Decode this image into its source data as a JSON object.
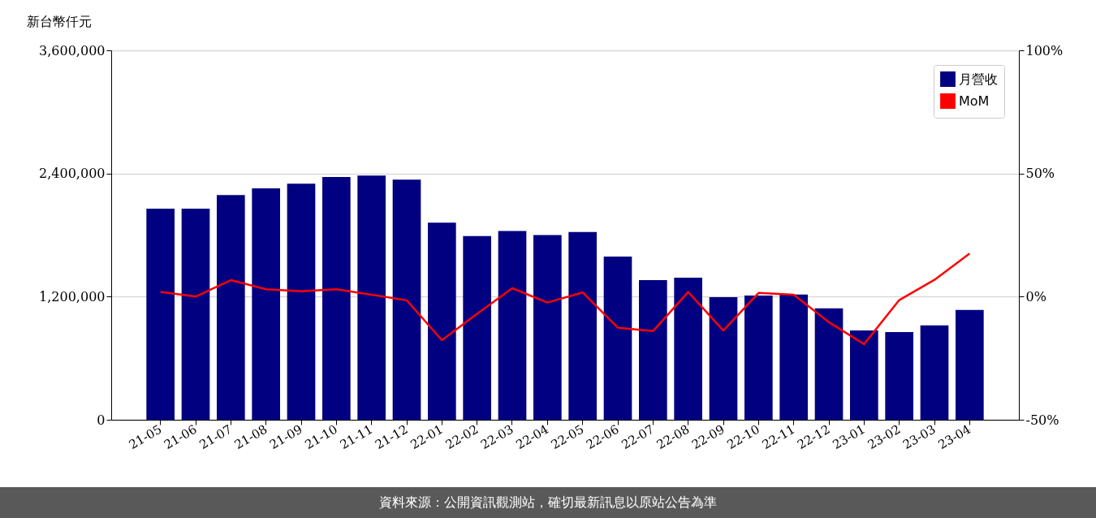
{
  "chart_data": {
    "type": "bar",
    "ylabel": "新台幣仟元",
    "categories": [
      "21-05",
      "21-06",
      "21-07",
      "21-08",
      "21-09",
      "21-10",
      "21-11",
      "21-12",
      "22-01",
      "22-02",
      "22-03",
      "22-04",
      "22-05",
      "22-06",
      "22-07",
      "22-08",
      "22-09",
      "22-10",
      "22-11",
      "22-12",
      "23-01",
      "23-02",
      "23-03",
      "23-04"
    ],
    "series": [
      {
        "name": "月營收",
        "color": "#000080",
        "values": [
          2057000,
          2057000,
          2190000,
          2255000,
          2300000,
          2366000,
          2380000,
          2340000,
          1920000,
          1790000,
          1840000,
          1800000,
          1830000,
          1590000,
          1360000,
          1385000,
          1195000,
          1210000,
          1220000,
          1085000,
          870000,
          855000,
          920000,
          1070000
        ]
      },
      {
        "name": "MoM",
        "type": "line",
        "axis": "y2",
        "color": "#ff0000",
        "values": [
          1.9,
          0.0,
          6.7,
          3.0,
          2.2,
          3.0,
          0.8,
          -1.5,
          -17.7,
          -7.0,
          3.4,
          -2.4,
          1.7,
          -12.6,
          -14.0,
          1.9,
          -13.8,
          1.5,
          0.8,
          -10.4,
          -19.3,
          -1.4,
          6.8,
          17.5
        ]
      }
    ],
    "ylim": [
      0,
      3600000
    ],
    "yticks": [
      0,
      {
        "value": 1200000,
        "label": "1,200,000"
      },
      {
        "value": 2400000,
        "label": "2,400,000"
      },
      {
        "value": 3600000,
        "label": "3,600,000"
      }
    ],
    "y2lim": [
      -50,
      100
    ],
    "y2ticks": [
      {
        "value": -50,
        "label": "-50%"
      },
      {
        "value": 0,
        "label": "0%"
      },
      {
        "value": 50,
        "label": "50%"
      },
      {
        "value": 100,
        "label": "100%"
      }
    ],
    "grid": "y",
    "legend": "top right",
    "line_style": "solid",
    "marker": "none",
    "annotations": [
      "資料來源：公開資訊觀測站，確切最新訊息以原站公告為準"
    ]
  }
}
